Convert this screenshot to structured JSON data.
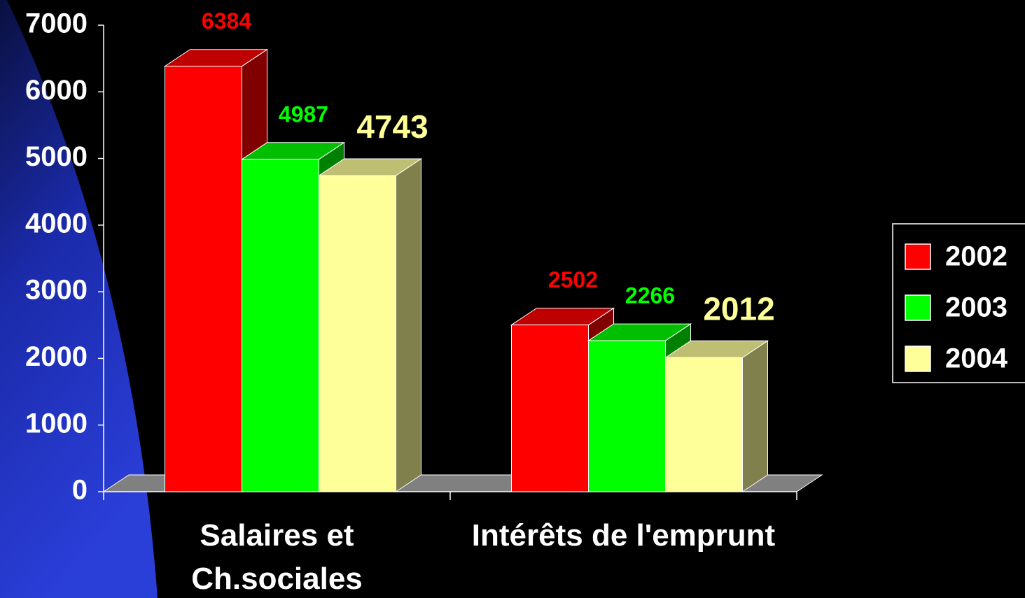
{
  "chart_data": {
    "type": "bar3d",
    "categories": [
      "Salaires et\nCh.sociales",
      "Intérêts de l'emprunt"
    ],
    "series": [
      {
        "name": "2002",
        "color": "#ff0000",
        "values": [
          6384,
          2502
        ]
      },
      {
        "name": "2003",
        "color": "#00ff00",
        "values": [
          4987,
          2266
        ]
      },
      {
        "name": "2004",
        "color": "#ffff99",
        "values": [
          4743,
          2012
        ]
      }
    ],
    "ylim": [
      0,
      7000
    ],
    "yticks": [
      0,
      1000,
      2000,
      3000,
      4000,
      5000,
      6000,
      7000
    ],
    "legend": "right"
  }
}
